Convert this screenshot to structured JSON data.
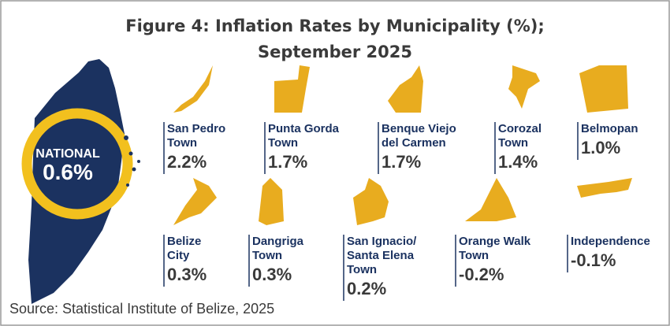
{
  "title_lines": [
    "Figure 4: Inflation Rates by Municipality (%);",
    "September 2025"
  ],
  "national": {
    "label": "NATIONAL",
    "value": "0.6%"
  },
  "municipalities": [
    {
      "name_lines": [
        "San Pedro",
        "Town"
      ],
      "value": "2.2%"
    },
    {
      "name_lines": [
        "Punta Gorda",
        "Town"
      ],
      "value": "1.7%"
    },
    {
      "name_lines": [
        "Benque Viejo",
        "del Carmen"
      ],
      "value": "1.7%"
    },
    {
      "name_lines": [
        "Corozal",
        "Town"
      ],
      "value": "1.4%"
    },
    {
      "name_lines": [
        "Belmopan"
      ],
      "value": "1.0%"
    },
    {
      "name_lines": [
        "Belize",
        "City"
      ],
      "value": "0.3%"
    },
    {
      "name_lines": [
        "Dangriga",
        "Town"
      ],
      "value": "0.3%"
    },
    {
      "name_lines": [
        "San Ignacio/",
        "Santa Elena",
        "Town"
      ],
      "value": "0.2%"
    },
    {
      "name_lines": [
        "Orange Walk",
        "Town"
      ],
      "value": "-0.2%"
    },
    {
      "name_lines": [
        "Independence"
      ],
      "value": "-0.1%"
    }
  ],
  "source": "Source: Statistical Institute of Belize, 2025"
}
